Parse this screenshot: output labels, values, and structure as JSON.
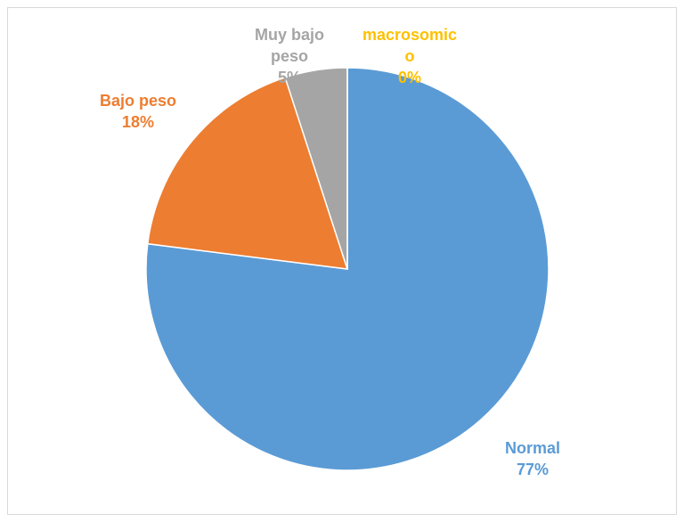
{
  "chart_data": {
    "type": "pie",
    "categories": [
      "Normal",
      "Bajo peso",
      "Muy bajo peso",
      "macrosomico"
    ],
    "values": [
      77,
      18,
      5,
      0
    ],
    "value_labels": [
      "77%",
      "18%",
      "5%",
      "0%"
    ],
    "colors": [
      "#5b9bd5",
      "#ed7d31",
      "#a5a5a5",
      "#ffc000"
    ]
  }
}
